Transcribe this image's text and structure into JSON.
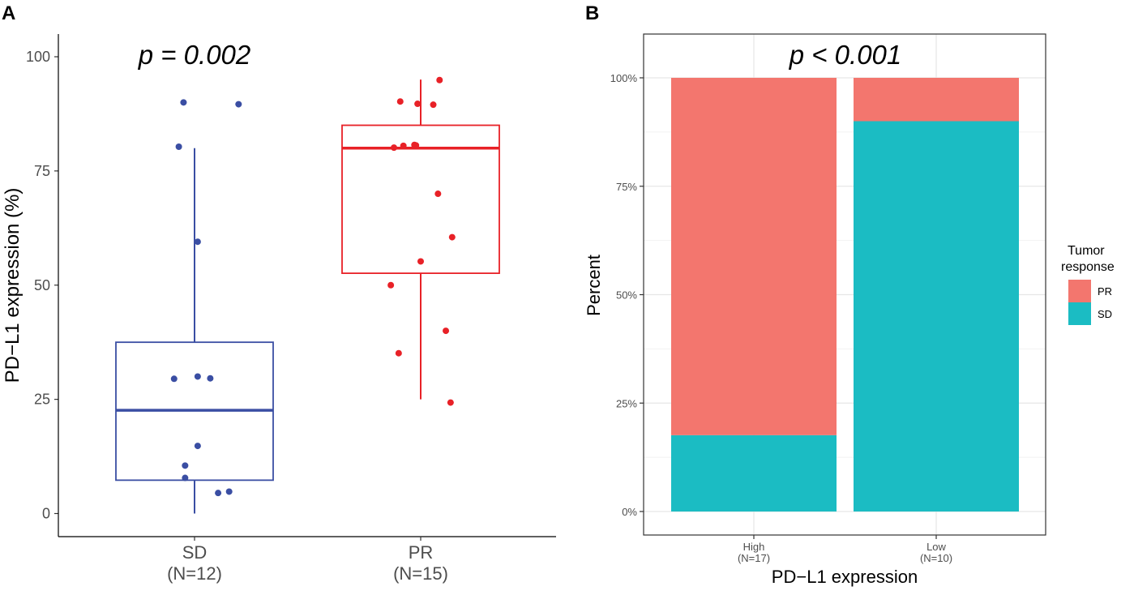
{
  "chart_data": [
    {
      "panel": "A",
      "type": "box",
      "p_label": "p = 0.002",
      "ylabel": "PD−L1 expression (%)",
      "ylim": [
        0,
        100
      ],
      "yticks": [
        "0",
        "25",
        "50",
        "75",
        "100"
      ],
      "groups": [
        {
          "name": "SD",
          "n_label": "(N=12)",
          "color": "#3a4ea3",
          "box": {
            "q1": 7.3,
            "median": 22.6,
            "q3": 37.5,
            "whisker_low": 0,
            "whisker_high": 80
          },
          "points": [
            {
              "jitter": -0.07,
              "y": 90.0
            },
            {
              "jitter": 0.28,
              "y": 89.6
            },
            {
              "jitter": -0.1,
              "y": 80.3
            },
            {
              "jitter": 0.02,
              "y": 59.5
            },
            {
              "jitter": -0.13,
              "y": 29.5
            },
            {
              "jitter": 0.02,
              "y": 30.0
            },
            {
              "jitter": 0.1,
              "y": 29.6
            },
            {
              "jitter": 0.02,
              "y": 14.8
            },
            {
              "jitter": -0.06,
              "y": 10.5
            },
            {
              "jitter": -0.06,
              "y": 7.8
            },
            {
              "jitter": 0.22,
              "y": 4.8
            },
            {
              "jitter": 0.15,
              "y": 4.5
            }
          ]
        },
        {
          "name": "PR",
          "n_label": "(N=15)",
          "color": "#e82127",
          "box": {
            "q1": 52.6,
            "median": 80.0,
            "q3": 85.0,
            "whisker_low": 25,
            "whisker_high": 95
          },
          "points": [
            {
              "jitter": 0.12,
              "y": 94.9
            },
            {
              "jitter": -0.13,
              "y": 90.2
            },
            {
              "jitter": -0.02,
              "y": 89.7
            },
            {
              "jitter": 0.08,
              "y": 89.5
            },
            {
              "jitter": -0.17,
              "y": 80.1
            },
            {
              "jitter": -0.11,
              "y": 80.5
            },
            {
              "jitter": -0.04,
              "y": 80.7
            },
            {
              "jitter": -0.03,
              "y": 80.6
            },
            {
              "jitter": 0.11,
              "y": 70.0
            },
            {
              "jitter": 0.2,
              "y": 60.5
            },
            {
              "jitter": 0.0,
              "y": 55.2
            },
            {
              "jitter": -0.19,
              "y": 50.0
            },
            {
              "jitter": 0.16,
              "y": 40.0
            },
            {
              "jitter": -0.14,
              "y": 35.1
            },
            {
              "jitter": 0.19,
              "y": 24.3
            }
          ]
        }
      ]
    },
    {
      "panel": "B",
      "type": "bar",
      "stacked": true,
      "p_label": "p < 0.001",
      "xlabel": "PD−L1 expression",
      "ylabel": "Percent",
      "ylim": [
        0,
        100
      ],
      "yticks": [
        "0%",
        "25%",
        "50%",
        "75%",
        "100%"
      ],
      "categories": [
        "High",
        "Low"
      ],
      "category_n": [
        "(N=17)",
        "(N=10)"
      ],
      "series": [
        {
          "name": "SD",
          "color": "#1bbcc3",
          "values": [
            17.6,
            90.0
          ]
        },
        {
          "name": "PR",
          "color": "#f3766e",
          "values": [
            82.4,
            10.0
          ]
        }
      ],
      "legend": {
        "title_line1": "Tumor",
        "title_line2": "response",
        "position": "right",
        "items": [
          "PR",
          "SD"
        ]
      }
    }
  ]
}
